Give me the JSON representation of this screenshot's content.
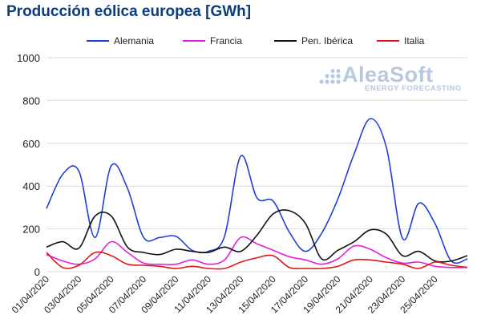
{
  "chart_data": {
    "type": "line",
    "title": "Producción eólica europea [GWh]",
    "xlabel": "",
    "ylabel": "",
    "ylim": [
      0,
      1000
    ],
    "yticks": [
      0,
      200,
      400,
      600,
      800,
      1000
    ],
    "xtick_labels": [
      "01/04/2020",
      "03/04/2020",
      "05/04/2020",
      "07/04/2020",
      "09/04/2020",
      "11/04/2020",
      "13/04/2020",
      "15/04/2020",
      "17/04/2020",
      "19/04/2020",
      "21/04/2020",
      "23/04/2020",
      "25/04/2020"
    ],
    "grid": true,
    "legend_position": "top",
    "x": [
      "01/04/2020",
      "02/04/2020",
      "03/04/2020",
      "04/04/2020",
      "05/04/2020",
      "06/04/2020",
      "07/04/2020",
      "08/04/2020",
      "09/04/2020",
      "10/04/2020",
      "11/04/2020",
      "12/04/2020",
      "13/04/2020",
      "14/04/2020",
      "15/04/2020",
      "16/04/2020",
      "17/04/2020",
      "18/04/2020",
      "19/04/2020",
      "20/04/2020",
      "21/04/2020",
      "22/04/2020",
      "23/04/2020",
      "24/04/2020",
      "25/04/2020",
      "26/04/2020",
      "27/04/2020"
    ],
    "series": [
      {
        "name": "Alemania",
        "color": "#1f3fd6",
        "values": [
          295,
          455,
          470,
          160,
          495,
          390,
          160,
          160,
          165,
          100,
          95,
          165,
          540,
          345,
          330,
          185,
          95,
          180,
          340,
          550,
          715,
          580,
          155,
          320,
          225,
          50,
          60
        ]
      },
      {
        "name": "Francia",
        "color": "#e020e0",
        "values": [
          80,
          50,
          35,
          60,
          140,
          90,
          40,
          35,
          35,
          55,
          35,
          55,
          160,
          130,
          100,
          70,
          55,
          35,
          60,
          120,
          105,
          65,
          40,
          45,
          25,
          20,
          20
        ]
      },
      {
        "name": "Pen. Ibérica",
        "color": "#111111",
        "values": [
          115,
          140,
          110,
          260,
          260,
          115,
          90,
          80,
          105,
          95,
          90,
          115,
          95,
          170,
          270,
          285,
          225,
          60,
          100,
          140,
          195,
          175,
          75,
          95,
          50,
          50,
          75
        ]
      },
      {
        "name": "Italia",
        "color": "#e01818",
        "values": [
          90,
          20,
          30,
          90,
          75,
          35,
          30,
          25,
          15,
          25,
          15,
          15,
          45,
          65,
          75,
          20,
          15,
          15,
          25,
          55,
          55,
          45,
          35,
          15,
          45,
          30,
          20
        ]
      }
    ]
  },
  "logo": {
    "name": "AleaSoft",
    "subtitle": "ENERGY FORECASTING",
    "dot_color": "#b8c9df"
  }
}
